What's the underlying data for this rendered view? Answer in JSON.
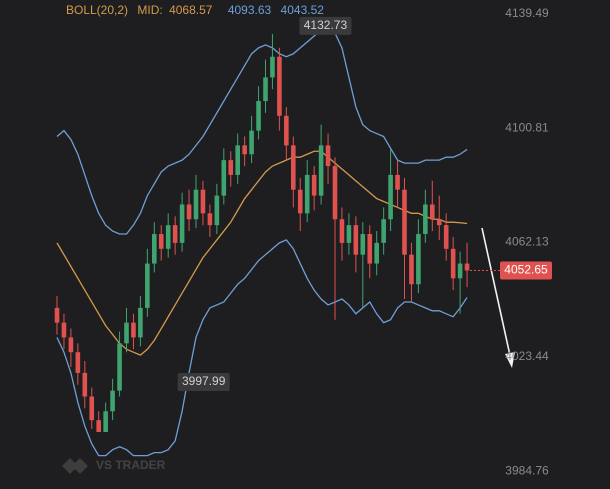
{
  "chart_data": {
    "type": "candlestick",
    "ylim": [
      3978.7,
      4144.2
    ],
    "yticks": [
      4139.49,
      4100.81,
      4062.13,
      4023.44,
      3984.76
    ],
    "up_color": "#3fa46f",
    "down_color": "#df524f",
    "open": [
      4040,
      4035,
      4030,
      4025,
      4018,
      4010,
      4002,
      3998,
      4005,
      4012,
      4028,
      4035,
      4030,
      4040,
      4055,
      4065,
      4060,
      4068,
      4062,
      4075,
      4070,
      4080,
      4072,
      4068,
      4078,
      4090,
      4085,
      4095,
      4092,
      4100,
      4110,
      4118,
      4125,
      4105,
      4095,
      4080,
      4072,
      4085,
      4078,
      4095,
      4088,
      4070,
      4062,
      4068,
      4058,
      4065,
      4055,
      4062,
      4070,
      4085,
      4080,
      4058,
      4048,
      4065,
      4075,
      4070,
      4068,
      4060,
      4050,
      4055
    ],
    "high": [
      4044,
      4038,
      4033,
      4028,
      4022,
      4013,
      4005,
      4008,
      4016,
      4032,
      4040,
      4038,
      4044,
      4060,
      4069,
      4068,
      4072,
      4071,
      4079,
      4080,
      4085,
      4083,
      4075,
      4082,
      4094,
      4093,
      4099,
      4098,
      4105,
      4115,
      4124,
      4132.73,
      4128,
      4108,
      4098,
      4084,
      4090,
      4088,
      4102,
      4099,
      4091,
      4074,
      4072,
      4071,
      4069,
      4068,
      4066,
      4074,
      4094,
      4090,
      4084,
      4062,
      4070,
      4080,
      4083,
      4078,
      4072,
      4064,
      4059,
      4062
    ],
    "low": [
      4031,
      4026,
      4020,
      4014,
      4006,
      3999,
      3997.99,
      3999,
      4002,
      4010,
      4025,
      4026,
      4027,
      4037,
      4052,
      4056,
      4057,
      4058,
      4059,
      4066,
      4067,
      4068,
      4064,
      4065,
      4075,
      4081,
      4082,
      4088,
      4089,
      4097,
      4106,
      4114,
      4100,
      4090,
      4074,
      4066,
      4069,
      4073,
      4075,
      4082,
      4036,
      4056,
      4058,
      4052,
      4040,
      4050,
      4051,
      4058,
      4066,
      4074,
      4043,
      4042,
      4045,
      4062,
      4066,
      4063,
      4056,
      4046,
      4038,
      4047
    ],
    "close": [
      4035,
      4030,
      4025,
      4018,
      4010,
      4002,
      3998,
      4005,
      4012,
      4028,
      4035,
      4030,
      4040,
      4055,
      4065,
      4060,
      4068,
      4062,
      4075,
      4070,
      4080,
      4072,
      4068,
      4078,
      4090,
      4085,
      4095,
      4092,
      4100,
      4110,
      4118,
      4125,
      4105,
      4095,
      4080,
      4072,
      4085,
      4078,
      4095,
      4088,
      4070,
      4062,
      4068,
      4058,
      4065,
      4055,
      4062,
      4070,
      4085,
      4080,
      4058,
      4048,
      4065,
      4075,
      4070,
      4068,
      4060,
      4050,
      4055,
      4052.65
    ],
    "bollinger": {
      "band_color": "#6f9fd6",
      "mid_color": "#d39a4c",
      "upper": [
        4098,
        4100,
        4097,
        4092,
        4085,
        4078,
        4072,
        4068,
        4066,
        4065,
        4065,
        4068,
        4072,
        4078,
        4082,
        4086,
        4088,
        4089,
        4090,
        4092,
        4095,
        4098,
        4102,
        4106,
        4110,
        4114,
        4118,
        4122,
        4126,
        4128,
        4129,
        4128,
        4126,
        4125,
        4126,
        4128,
        4130,
        4132,
        4134,
        4135,
        4133,
        4128,
        4118,
        4108,
        4102,
        4100,
        4099,
        4098,
        4094,
        4090,
        4089,
        4089,
        4089,
        4090,
        4090,
        4090,
        4091,
        4091,
        4092,
        4093.63
      ],
      "mid": [
        4062,
        4058,
        4054,
        4050,
        4046,
        4042,
        4038,
        4034,
        4031,
        4028,
        4026,
        4025,
        4024,
        4026,
        4029,
        4033,
        4037,
        4041,
        4045,
        4049,
        4053,
        4057,
        4060,
        4063,
        4066,
        4069,
        4073,
        4077,
        4080,
        4083,
        4086,
        4088,
        4089,
        4090,
        4091,
        4091,
        4092,
        4093,
        4093,
        4091,
        4089,
        4087,
        4085,
        4083,
        4081,
        4079,
        4077,
        4076,
        4075,
        4074,
        4073,
        4072,
        4072,
        4071,
        4070,
        4070,
        4069,
        4069,
        4068.8,
        4068.57
      ],
      "lower": [
        4030,
        4025,
        4018,
        4008,
        4000,
        3994,
        3990,
        3990,
        3992,
        3993,
        3992,
        3990,
        3990,
        3990,
        3991,
        3991,
        3992,
        3995,
        4005,
        4018,
        4030,
        4036,
        4040,
        4041,
        4042,
        4045,
        4048,
        4050,
        4053,
        4056,
        4058,
        4060,
        4062,
        4063,
        4060,
        4055,
        4050,
        4046,
        4043,
        4041,
        4042,
        4043,
        4041,
        4038,
        4040,
        4042,
        4038,
        4035,
        4036,
        4040,
        4042,
        4042,
        4041,
        4040,
        4039,
        4039,
        4038,
        4037,
        4040,
        4043.52
      ]
    },
    "legend": {
      "indicator": "BOLL(20,2)",
      "mid_label": "MID:"
    },
    "watermark": "VS TRADER"
  }
}
